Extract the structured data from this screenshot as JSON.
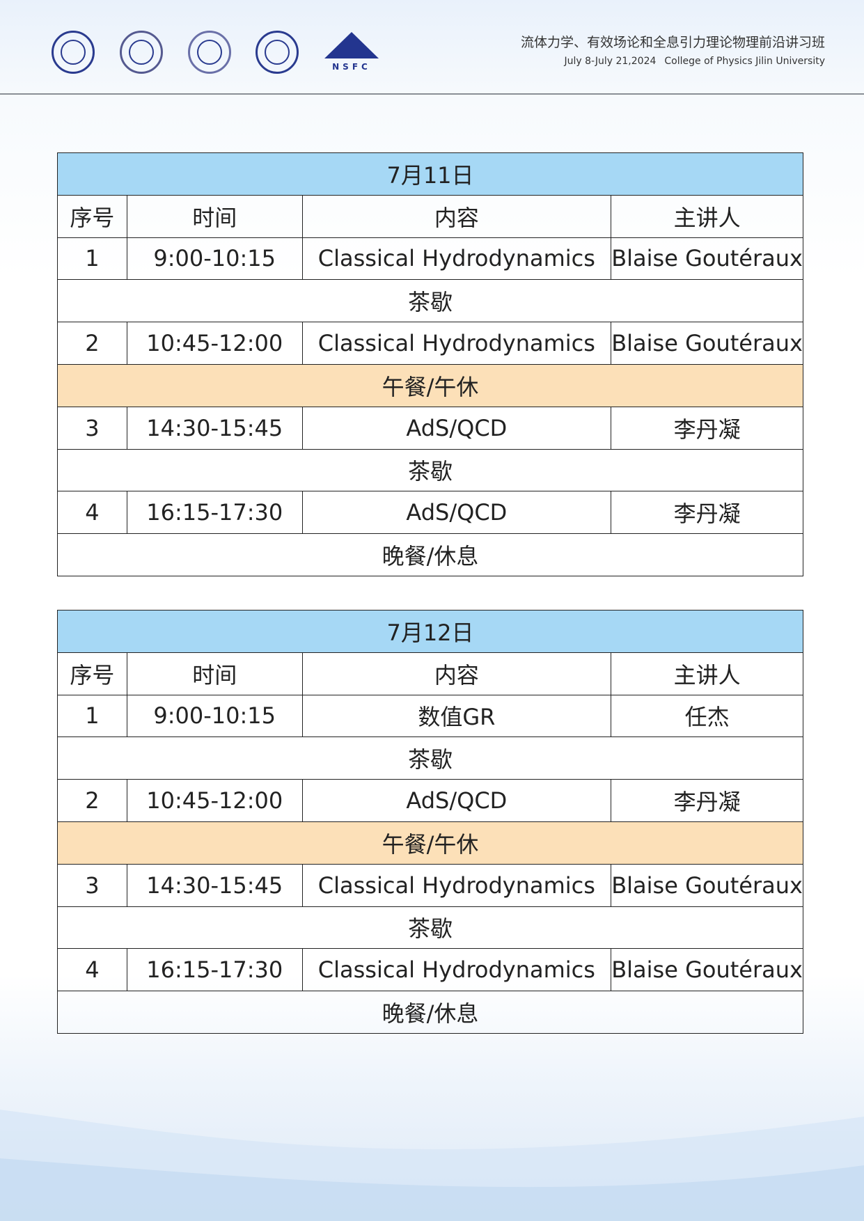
{
  "header": {
    "title": "流体力学、有效场论和全息引力理论物理前沿讲习班",
    "dates": "July 8-July 21,2024",
    "org": "College of Physics Jilin University",
    "logos": [
      "jilin-university-seal",
      "college-of-physics-seal",
      "physics-society-seal",
      "university-of-technology-seal",
      "NSFC"
    ]
  },
  "columns": [
    "序号",
    "时间",
    "内容",
    "主讲人"
  ],
  "days": [
    {
      "date": "7月11日",
      "rows": [
        {
          "type": "talk",
          "no": "1",
          "time": "9:00-10:15",
          "content": "Classical Hydrodynamics",
          "speaker": "Blaise Goutéraux"
        },
        {
          "type": "break",
          "label": "茶歇"
        },
        {
          "type": "talk",
          "no": "2",
          "time": "10:45-12:00",
          "content": "Classical Hydrodynamics",
          "speaker": "Blaise Goutéraux"
        },
        {
          "type": "lunch",
          "label": "午餐/午休"
        },
        {
          "type": "talk",
          "no": "3",
          "time": "14:30-15:45",
          "content": "AdS/QCD",
          "speaker": "李丹凝"
        },
        {
          "type": "break",
          "label": "茶歇"
        },
        {
          "type": "talk",
          "no": "4",
          "time": "16:15-17:30",
          "content": "AdS/QCD",
          "speaker": "李丹凝"
        },
        {
          "type": "break",
          "label": "晚餐/休息"
        }
      ]
    },
    {
      "date": "7月12日",
      "rows": [
        {
          "type": "talk",
          "no": "1",
          "time": "9:00-10:15",
          "content": "数值GR",
          "speaker": "任杰"
        },
        {
          "type": "break",
          "label": "茶歇"
        },
        {
          "type": "talk",
          "no": "2",
          "time": "10:45-12:00",
          "content": "AdS/QCD",
          "speaker": "李丹凝"
        },
        {
          "type": "lunch",
          "label": "午餐/午休"
        },
        {
          "type": "talk",
          "no": "3",
          "time": "14:30-15:45",
          "content": "Classical Hydrodynamics",
          "speaker": "Blaise Goutéraux"
        },
        {
          "type": "break",
          "label": "茶歇"
        },
        {
          "type": "talk",
          "no": "4",
          "time": "16:15-17:30",
          "content": "Classical Hydrodynamics",
          "speaker": "Blaise Goutéraux"
        },
        {
          "type": "break",
          "label": "晚餐/休息"
        }
      ]
    }
  ],
  "colors": {
    "day_header": "#a6d8f5",
    "lunch_row": "#fce0b8",
    "logo_blue": "#2a3b8f"
  }
}
